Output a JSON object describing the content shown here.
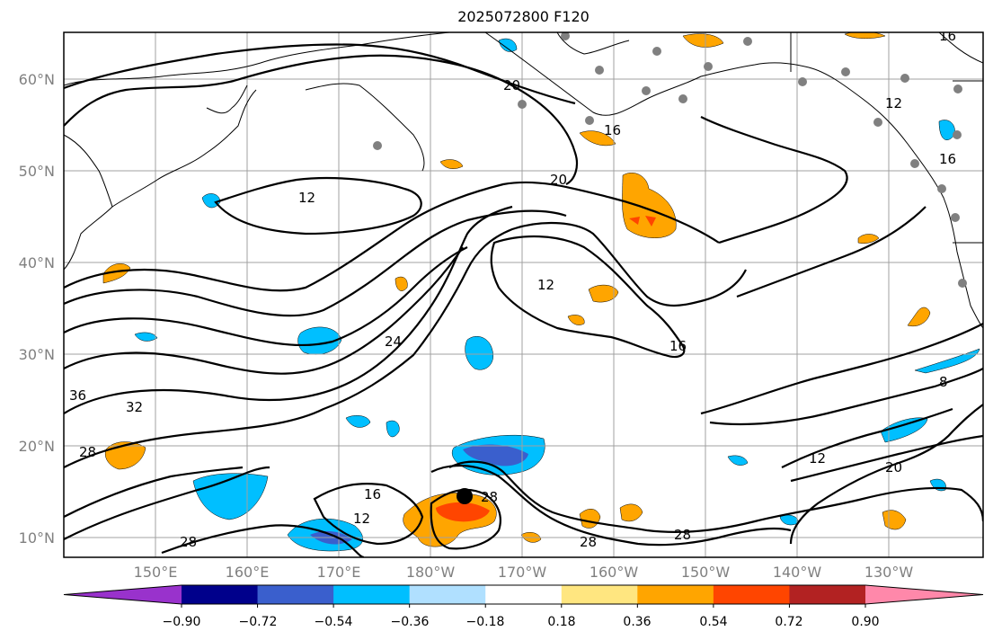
{
  "title": "2025072800 F120",
  "lat_labels": [
    "60°N",
    "50°N",
    "40°N",
    "30°N",
    "20°N",
    "10°N"
  ],
  "lon_labels": [
    "150°E",
    "160°E",
    "170°E",
    "180°W",
    "170°W",
    "160°W",
    "150°W",
    "140°W",
    "130°W"
  ],
  "colorbar": {
    "ticks": [
      "−0.90",
      "−0.72",
      "−0.54",
      "−0.36",
      "−0.18",
      "0.18",
      "0.36",
      "0.54",
      "0.72",
      "0.90"
    ],
    "colors": [
      "#9932cc",
      "#00008b",
      "#3a5fcd",
      "#00bfff",
      "#b0e0ff",
      "#ffffff",
      "#ffe680",
      "#ffa500",
      "#ff4500",
      "#b22222",
      "#ff88aa"
    ]
  },
  "contour_labels": [
    "20",
    "16",
    "20",
    "12",
    "12",
    "24",
    "16",
    "8",
    "32",
    "36",
    "28",
    "16",
    "12",
    "28",
    "28",
    "28",
    "28",
    "12",
    "20",
    "16",
    "12",
    "16"
  ],
  "colors": {
    "land_marker": "#808080",
    "storm_center": "#000000"
  }
}
